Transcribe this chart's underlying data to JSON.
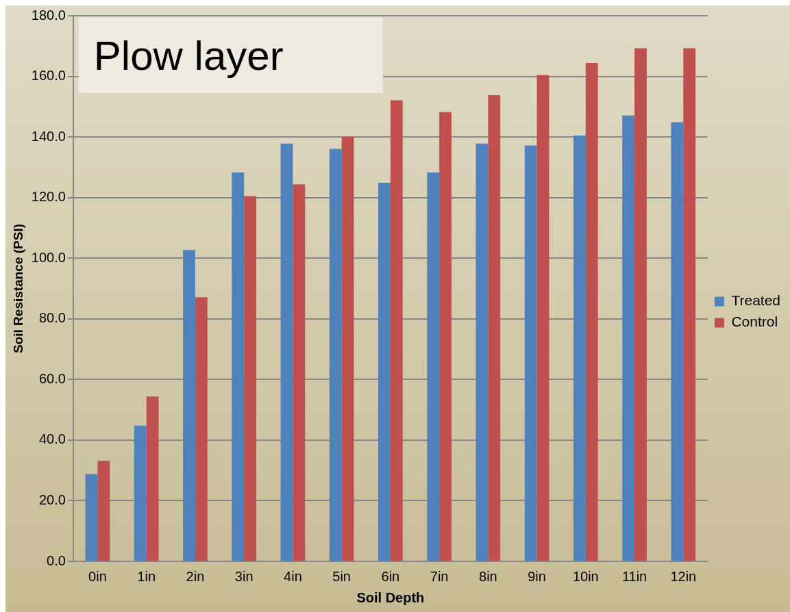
{
  "chart_data": {
    "type": "bar",
    "title": "Plow layer",
    "xlabel": "Soil Depth",
    "ylabel": "Soil Resistance (PSI)",
    "categories": [
      "0in",
      "1in",
      "2in",
      "3in",
      "4in",
      "5in",
      "6in",
      "7in",
      "8in",
      "9in",
      "10in",
      "11in",
      "12in"
    ],
    "series": [
      {
        "name": "Treated",
        "color": "#4f81bd",
        "values": [
          28.8,
          44.8,
          102.7,
          128.3,
          137.8,
          136.1,
          124.9,
          128.3,
          137.8,
          137.2,
          140.5,
          147.1,
          144.9
        ]
      },
      {
        "name": "Control",
        "color": "#c0504d",
        "values": [
          33.2,
          54.4,
          87.1,
          120.5,
          124.4,
          140.0,
          152.1,
          148.2,
          153.8,
          160.4,
          164.4,
          169.3,
          169.3
        ]
      }
    ],
    "ylim": [
      0,
      180
    ],
    "yticks": [
      {
        "value": 0,
        "label": "0.0"
      },
      {
        "value": 20,
        "label": "20.0"
      },
      {
        "value": 40,
        "label": "40.0"
      },
      {
        "value": 60,
        "label": "60.0"
      },
      {
        "value": 80,
        "label": "80.0"
      },
      {
        "value": 100,
        "label": "100.0"
      },
      {
        "value": 120,
        "label": "120.0"
      },
      {
        "value": 140,
        "label": "140.0"
      },
      {
        "value": 160,
        "label": "160.0"
      },
      {
        "value": 180,
        "label": "180.0"
      }
    ],
    "grid": "y",
    "legend": "right"
  }
}
